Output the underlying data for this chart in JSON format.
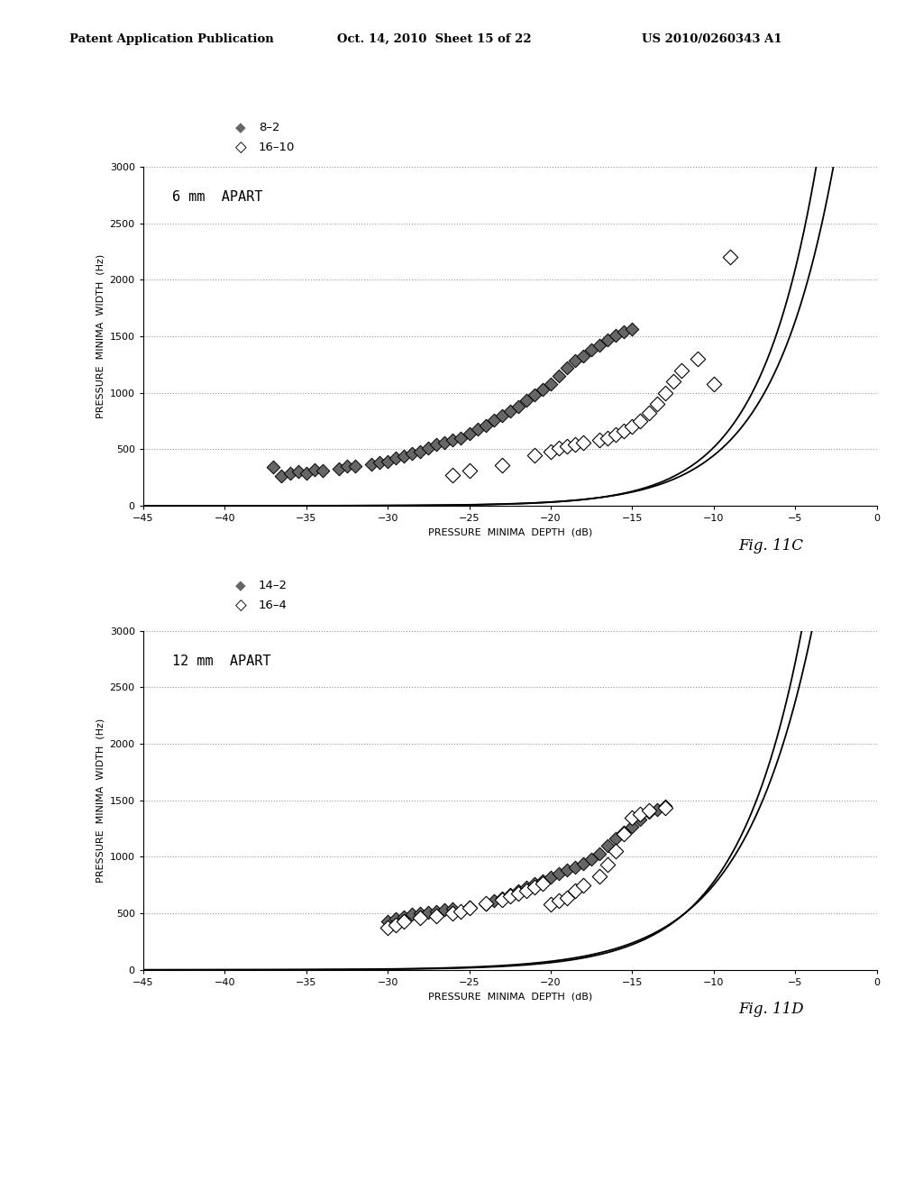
{
  "header_left": "Patent Application Publication",
  "header_mid": "Oct. 14, 2010  Sheet 15 of 22",
  "header_right": "US 2010/0260343 A1",
  "fig_C": {
    "title": "6 mm  APART",
    "fig_label": "Fig. 11C",
    "xlabel": "PRESSURE  MINIMA  DEPTH  (dB)",
    "ylabel": "PRESSURE  MINIMA  WIDTH  (Hz)",
    "xlim": [
      -45,
      0
    ],
    "ylim": [
      0,
      3000
    ],
    "xticks": [
      -45,
      -40,
      -35,
      -30,
      -25,
      -20,
      -15,
      -10,
      -5,
      0
    ],
    "yticks": [
      0,
      500,
      1000,
      1500,
      2000,
      2500,
      3000
    ],
    "legend1_label": "8–2",
    "legend2_label": "16–10",
    "series1_x": [
      -37,
      -36.5,
      -36,
      -35.5,
      -35,
      -34.5,
      -34,
      -33,
      -32.5,
      -32,
      -31,
      -30.5,
      -30,
      -29.5,
      -29,
      -28.5,
      -28,
      -27.5,
      -27,
      -26.5,
      -26,
      -25.5,
      -25,
      -24.5,
      -24,
      -23.5,
      -23,
      -22.5,
      -22,
      -21.5,
      -21,
      -20.5,
      -20,
      -19.5,
      -19,
      -18.5,
      -18,
      -17.5,
      -17,
      -16.5,
      -16,
      -15.5,
      -15
    ],
    "series1_y": [
      340,
      260,
      290,
      300,
      290,
      320,
      310,
      330,
      350,
      350,
      370,
      380,
      390,
      420,
      440,
      460,
      480,
      510,
      540,
      560,
      580,
      600,
      640,
      680,
      710,
      760,
      800,
      840,
      880,
      930,
      980,
      1030,
      1080,
      1150,
      1220,
      1280,
      1320,
      1380,
      1420,
      1470,
      1510,
      1540,
      1560
    ],
    "series2_x": [
      -26,
      -25,
      -23,
      -21,
      -20,
      -19.5,
      -19,
      -18.5,
      -18,
      -17,
      -16.5,
      -16,
      -15.5,
      -15,
      -14.5,
      -14,
      -13.5,
      -13,
      -12.5,
      -12,
      -11,
      -10,
      -9
    ],
    "series2_y": [
      270,
      310,
      360,
      450,
      480,
      510,
      530,
      540,
      560,
      580,
      600,
      630,
      660,
      700,
      750,
      820,
      900,
      1000,
      1100,
      1200,
      1300,
      1080,
      2200
    ],
    "curve1_k": 0.28,
    "curve1_A": 8.5,
    "curve2_k": 0.26,
    "curve2_A": 6.0
  },
  "fig_D": {
    "title": "12 mm  APART",
    "fig_label": "Fig. 11D",
    "xlabel": "PRESSURE  MINIMA  DEPTH  (dB)",
    "ylabel": "PRESSURE  MINIMA  WIDTH  (Hz)",
    "xlim": [
      -45,
      0
    ],
    "ylim": [
      0,
      3000
    ],
    "xticks": [
      -45,
      -40,
      -35,
      -30,
      -25,
      -20,
      -15,
      -10,
      -5,
      0
    ],
    "yticks": [
      0,
      500,
      1000,
      1500,
      2000,
      2500,
      3000
    ],
    "legend1_label": "14–2",
    "legend2_label": "16–4",
    "series1_x": [
      -30,
      -29.5,
      -29,
      -28.5,
      -28,
      -27.5,
      -27,
      -26.5,
      -26,
      -25,
      -24,
      -23.5,
      -23,
      -22.5,
      -22,
      -21.5,
      -21,
      -20.5,
      -20,
      -19.5,
      -19,
      -18.5,
      -18,
      -17.5,
      -17,
      -16.5,
      -16,
      -15.5,
      -15,
      -14.5,
      -14,
      -13.5,
      -13
    ],
    "series1_y": [
      430,
      450,
      470,
      490,
      500,
      510,
      520,
      530,
      540,
      560,
      580,
      610,
      640,
      670,
      700,
      730,
      760,
      790,
      820,
      850,
      880,
      910,
      940,
      980,
      1030,
      1100,
      1160,
      1220,
      1270,
      1330,
      1390,
      1420,
      1450
    ],
    "series2_x": [
      -30,
      -29.5,
      -29,
      -28,
      -27,
      -26,
      -25.5,
      -25,
      -24,
      -23,
      -22.5,
      -22,
      -21.5,
      -21,
      -20.5,
      -20,
      -19.5,
      -19,
      -18.5,
      -18,
      -17,
      -16.5,
      -16,
      -15.5,
      -15,
      -14.5,
      -14,
      -13
    ],
    "series2_y": [
      370,
      400,
      430,
      460,
      480,
      500,
      520,
      550,
      590,
      620,
      650,
      680,
      700,
      730,
      760,
      580,
      610,
      640,
      700,
      750,
      830,
      930,
      1050,
      1200,
      1350,
      1380,
      1410,
      1430
    ],
    "curve1_k": 0.25,
    "curve1_A": 9.5,
    "curve2_k": 0.23,
    "curve2_A": 7.5
  },
  "background_color": "#ffffff",
  "plot_bg_color": "#ffffff",
  "grid_color": "#999999",
  "curve_color": "#000000",
  "marker_fill_color": "#666666",
  "marker_edge_color": "#000000"
}
